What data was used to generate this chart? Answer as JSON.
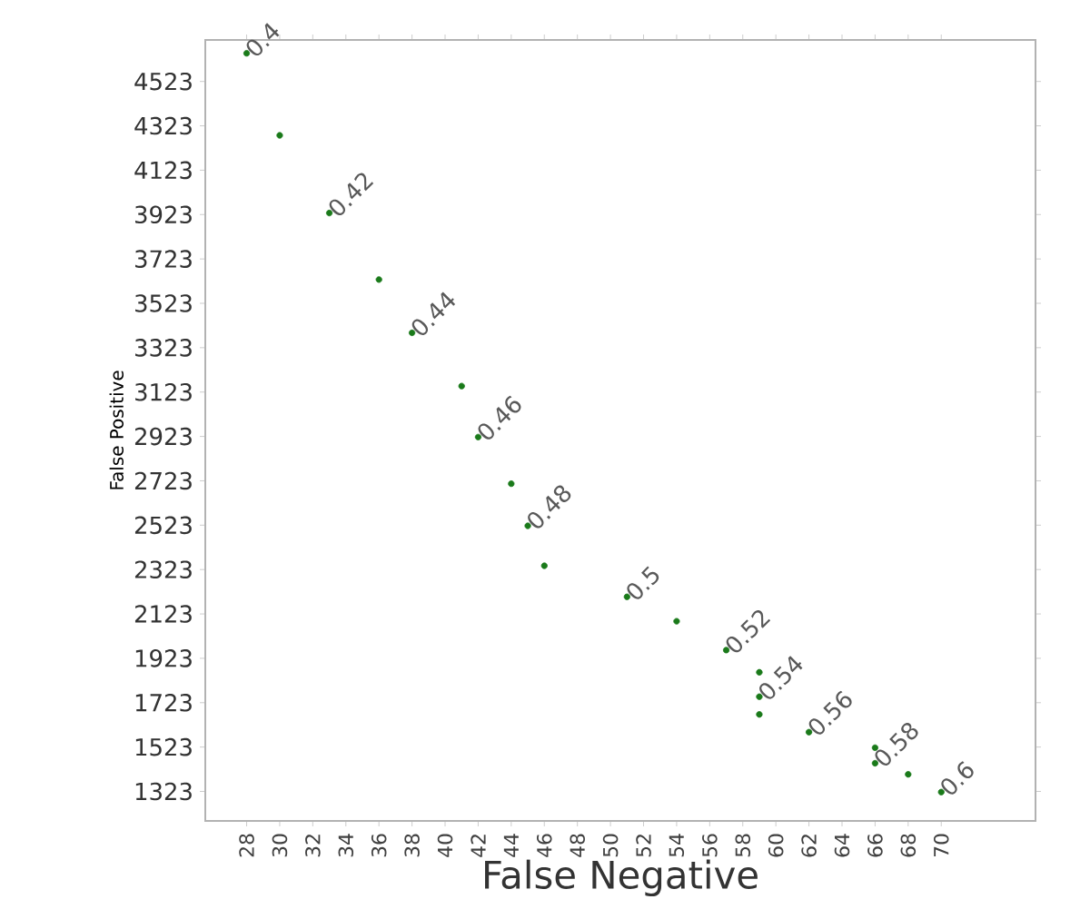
{
  "chart_data": {
    "type": "scatter",
    "xlabel": "False Negative",
    "ylabel": "False Positive",
    "x": [
      28,
      30,
      33,
      36,
      38,
      41,
      42,
      44,
      45,
      46,
      51,
      54,
      57,
      59,
      59,
      59,
      62,
      66,
      66,
      68,
      70
    ],
    "values": [
      4650,
      4280,
      3930,
      3630,
      3390,
      3150,
      2920,
      2710,
      2520,
      2340,
      2200,
      2090,
      1960,
      1860,
      1750,
      1670,
      1590,
      1520,
      1450,
      1400,
      1320
    ],
    "color": "#1a7a1a",
    "marker": "circle",
    "xlim": [
      25.5,
      75.7
    ],
    "ylim": [
      1190,
      4710
    ],
    "xticks": [
      28,
      30,
      32,
      34,
      36,
      38,
      40,
      42,
      44,
      46,
      48,
      50,
      52,
      54,
      56,
      58,
      60,
      62,
      64,
      66,
      68,
      70
    ],
    "yticks": [
      1323,
      1523,
      1723,
      1923,
      2123,
      2323,
      2523,
      2723,
      2923,
      3123,
      3323,
      3523,
      3723,
      3923,
      4123,
      4323,
      4523
    ],
    "grid": false,
    "annotations": [
      {
        "text": "0.4",
        "x": 28,
        "y": 4650
      },
      {
        "text": "0.42",
        "x": 33,
        "y": 3930
      },
      {
        "text": "0.44",
        "x": 38,
        "y": 3390
      },
      {
        "text": "0.46",
        "x": 42,
        "y": 2920
      },
      {
        "text": "0.48",
        "x": 45,
        "y": 2520
      },
      {
        "text": "0.5",
        "x": 51,
        "y": 2200
      },
      {
        "text": "0.52",
        "x": 57,
        "y": 1960
      },
      {
        "text": "0.54",
        "x": 59,
        "y": 1750
      },
      {
        "text": "0.56",
        "x": 62,
        "y": 1590
      },
      {
        "text": "0.58",
        "x": 66,
        "y": 1450
      },
      {
        "text": "0.6",
        "x": 70,
        "y": 1320
      }
    ]
  }
}
